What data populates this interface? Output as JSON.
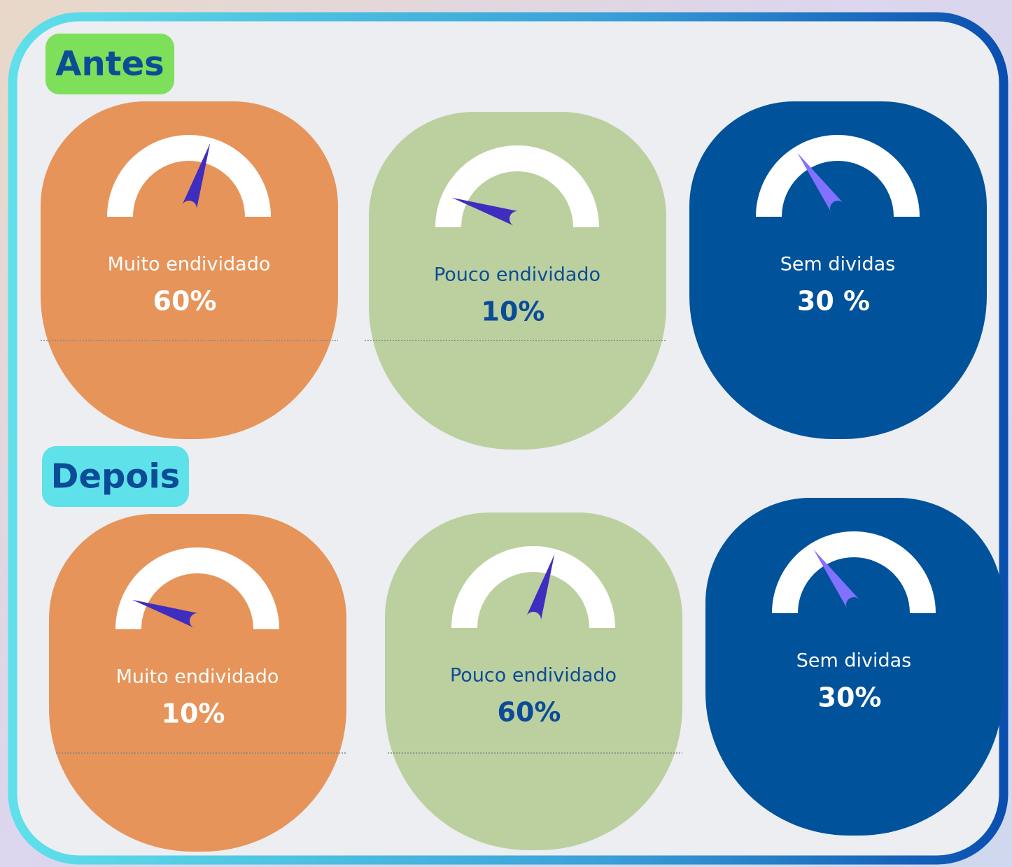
{
  "gauge_range": [
    0,
    100
  ],
  "sections": [
    {
      "title": "Antes",
      "title_color": "#7ddf5a",
      "cards": [
        {
          "label": "Muito endividado",
          "value": 60,
          "value_label": "60%",
          "color": "#e6945a",
          "text_color": "#ffffff",
          "needle_color": "#3f2dbf"
        },
        {
          "label": "Pouco endividado",
          "value": 10,
          "value_label": "10%",
          "color": "#bcd09f",
          "text_color": "#0b4c96",
          "needle_color": "#3f2dbf"
        },
        {
          "label": "Sem dividas",
          "value": 30,
          "value_label": "30 %",
          "color": "#00529b",
          "text_color": "#ffffff",
          "needle_color": "#8271ff"
        }
      ]
    },
    {
      "title": "Depois",
      "title_color": "#5fe1ea",
      "cards": [
        {
          "label": "Muito endividado",
          "value": 10,
          "value_label": "10%",
          "color": "#e6945a",
          "text_color": "#ffffff",
          "needle_color": "#3f2dbf"
        },
        {
          "label": "Pouco endividado",
          "value": 60,
          "value_label": "60%",
          "color": "#bcd09f",
          "text_color": "#0b4c96",
          "needle_color": "#3f2dbf"
        },
        {
          "label": "Sem dividas",
          "value": 30,
          "value_label": "30%",
          "color": "#00529b",
          "text_color": "#ffffff",
          "needle_color": "#8271ff"
        }
      ]
    }
  ]
}
